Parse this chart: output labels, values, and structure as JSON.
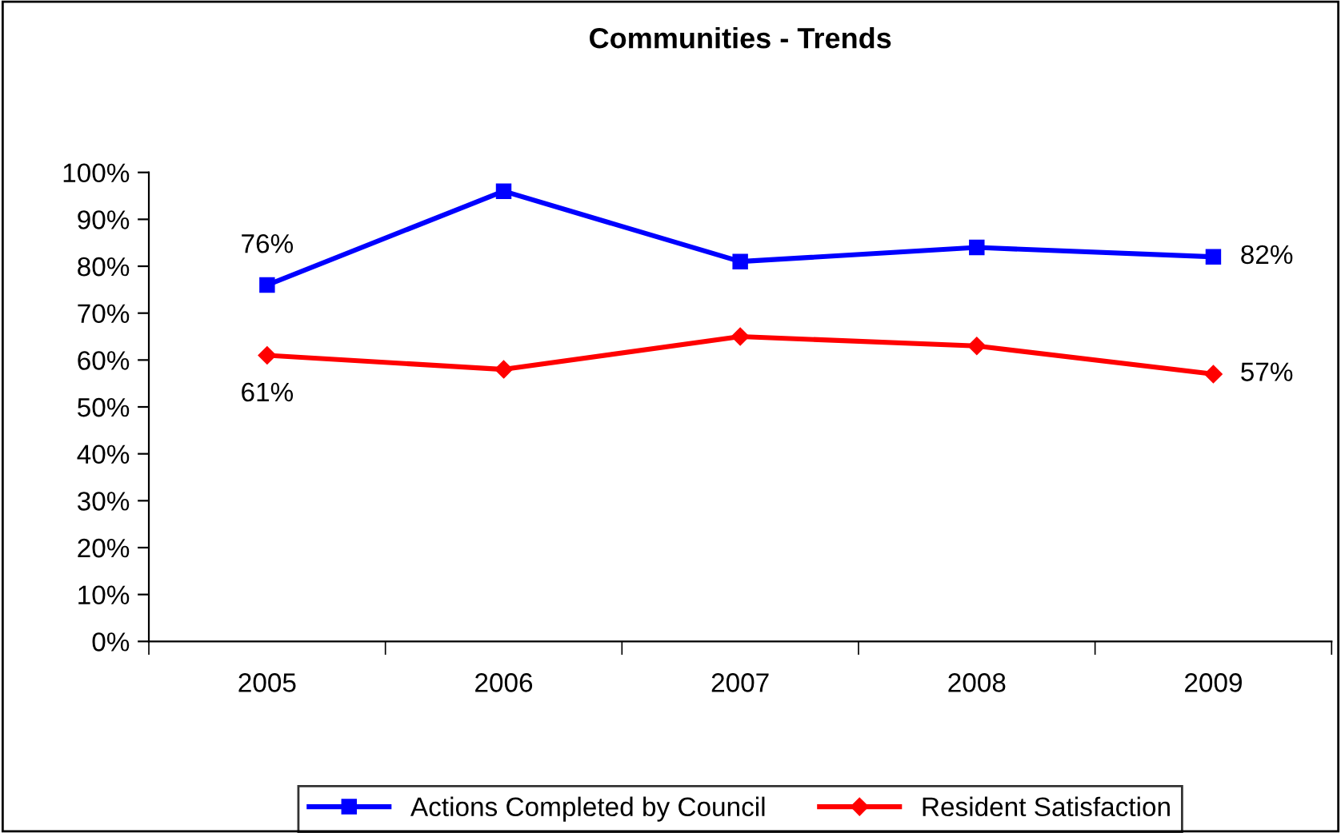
{
  "chart_data": {
    "type": "line",
    "title": "Communities - Trends",
    "categories": [
      "2005",
      "2006",
      "2007",
      "2008",
      "2009"
    ],
    "series": [
      {
        "name": "Actions Completed by Council",
        "color": "#0000ff",
        "marker": "square",
        "values": [
          76,
          96,
          81,
          84,
          82
        ],
        "value_labels": [
          "76%",
          null,
          null,
          null,
          "82%"
        ]
      },
      {
        "name": "Resident Satisfaction",
        "color": "#ff0000",
        "marker": "diamond",
        "values": [
          61,
          58,
          65,
          63,
          57
        ],
        "value_labels": [
          "61%",
          null,
          null,
          null,
          "57%"
        ]
      }
    ],
    "ylim": [
      0,
      100
    ],
    "yticks": [
      {
        "value": 0,
        "label": "0%"
      },
      {
        "value": 10,
        "label": "10%"
      },
      {
        "value": 20,
        "label": "20%"
      },
      {
        "value": 30,
        "label": "30%"
      },
      {
        "value": 40,
        "label": "40%"
      },
      {
        "value": 50,
        "label": "50%"
      },
      {
        "value": 60,
        "label": "60%"
      },
      {
        "value": 70,
        "label": "70%"
      },
      {
        "value": 80,
        "label": "80%"
      },
      {
        "value": 90,
        "label": "90%"
      },
      {
        "value": 100,
        "label": "100%"
      }
    ],
    "grid": false,
    "legend": "bottom",
    "line_style": "solid"
  }
}
